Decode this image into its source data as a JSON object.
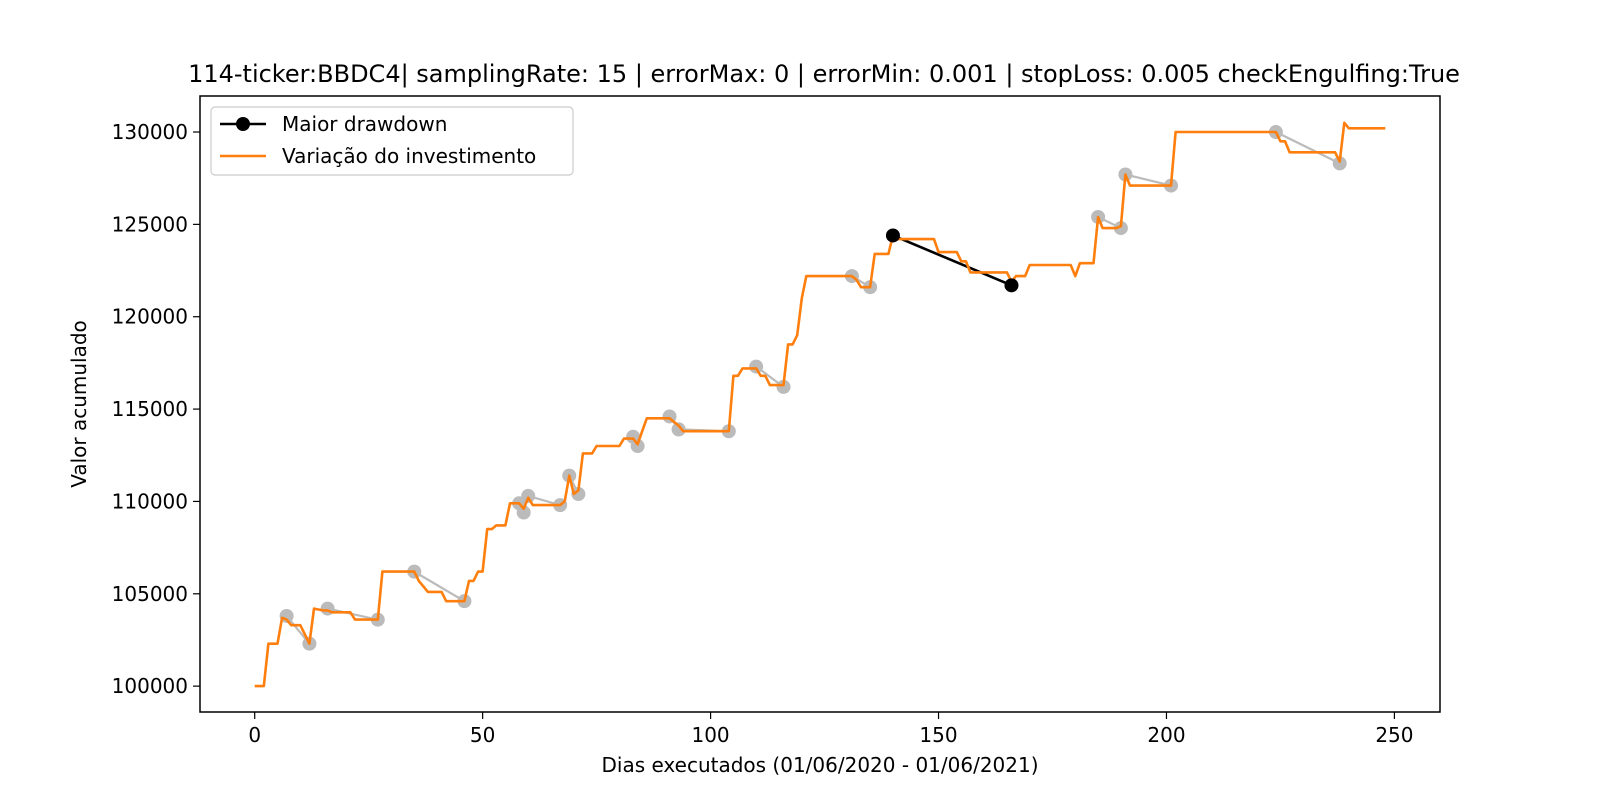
{
  "chart_data": {
    "type": "line",
    "title": "114-ticker:BBDC4| samplingRate: 15 | errorMax: 0 | errorMin: 0.001 | stopLoss: 0.005 checkEngulfing:True",
    "xlabel": "Dias executados (01/06/2020 - 01/06/2021)",
    "ylabel": "Valor acumulado",
    "xlim": [
      -12,
      260
    ],
    "ylim": [
      98600,
      131950
    ],
    "xticks": [
      0,
      50,
      100,
      150,
      200,
      250
    ],
    "yticks": [
      100000,
      105000,
      110000,
      115000,
      120000,
      125000,
      130000
    ],
    "legend": {
      "position": "upper left",
      "entries": [
        {
          "label": "Maior drawdown",
          "color": "#000000",
          "style": "line-marker"
        },
        {
          "label": "Variação do investimento",
          "color": "#ff7f0e",
          "style": "line"
        }
      ]
    },
    "series": [
      {
        "name": "Variação do investimento",
        "color": "#ff7f0e",
        "x": [
          0,
          2,
          3,
          5,
          6,
          7,
          8,
          9,
          10,
          11,
          12,
          13,
          15,
          16,
          17,
          18,
          19,
          21,
          22,
          23,
          25,
          26,
          27,
          28,
          30,
          32,
          33,
          34,
          35,
          36,
          37,
          38,
          39,
          40,
          41,
          42,
          43,
          44,
          45,
          46,
          47,
          48,
          49,
          50,
          51,
          52,
          53,
          54,
          55,
          56,
          57,
          58,
          59,
          60,
          61,
          62,
          63,
          64,
          65,
          66,
          67,
          68,
          69,
          70,
          71,
          72,
          73,
          74,
          75,
          76,
          78,
          79,
          80,
          81,
          82,
          83,
          84,
          85,
          86,
          87,
          88,
          89,
          90,
          91,
          92,
          93,
          94,
          95,
          96,
          97,
          98,
          99,
          100,
          101,
          102,
          103,
          104,
          105,
          106,
          107,
          108,
          109,
          110,
          111,
          112,
          113,
          114,
          115,
          116,
          117,
          118,
          119,
          120,
          121,
          122,
          124,
          126,
          128,
          130,
          131,
          132,
          133,
          134,
          135,
          136,
          137,
          138,
          139,
          140,
          141,
          142,
          143,
          144,
          145,
          146,
          147,
          148,
          149,
          150,
          151,
          152,
          153,
          154,
          155,
          156,
          157,
          158,
          159,
          160,
          161,
          162,
          163,
          164,
          165,
          166,
          167,
          168,
          169,
          170,
          172,
          174,
          176,
          178,
          179,
          180,
          181,
          182,
          183,
          184,
          185,
          186,
          187,
          188,
          189,
          190,
          191,
          192,
          193,
          194,
          196,
          198,
          200,
          201,
          202,
          204,
          206,
          208,
          210,
          212,
          214,
          216,
          218,
          220,
          222,
          224,
          225,
          226,
          227,
          228,
          229,
          230,
          232,
          234,
          236,
          237,
          238,
          239,
          240,
          242,
          244,
          246,
          248
        ],
        "y": [
          100000,
          100000,
          102300,
          102300,
          103700,
          103600,
          103300,
          103300,
          103300,
          102800,
          102300,
          104200,
          104100,
          104100,
          104000,
          104000,
          104000,
          104000,
          103600,
          103600,
          103600,
          103600,
          103600,
          106200,
          106200,
          106200,
          106200,
          106200,
          106200,
          105700,
          105400,
          105100,
          105100,
          105100,
          105100,
          104600,
          104600,
          104600,
          104600,
          104600,
          105700,
          105700,
          106200,
          106200,
          108500,
          108500,
          108700,
          108700,
          108700,
          109900,
          109900,
          109900,
          109600,
          110200,
          109800,
          109800,
          109800,
          109800,
          109800,
          109800,
          109800,
          110000,
          111400,
          110400,
          110600,
          112600,
          112600,
          112600,
          113000,
          113000,
          113000,
          113000,
          113000,
          113400,
          113400,
          113400,
          113100,
          113800,
          114500,
          114500,
          114500,
          114500,
          114500,
          114500,
          114300,
          114100,
          113800,
          113800,
          113800,
          113800,
          113800,
          113800,
          113800,
          113800,
          113800,
          113800,
          113800,
          116800,
          116800,
          117200,
          117200,
          117200,
          117200,
          116800,
          116800,
          116300,
          116300,
          116300,
          116300,
          118500,
          118500,
          119000,
          121000,
          122200,
          122200,
          122200,
          122200,
          122200,
          122200,
          122200,
          122000,
          121600,
          121600,
          121600,
          123400,
          123400,
          123400,
          123400,
          124400,
          124200,
          124200,
          124200,
          124200,
          124200,
          124200,
          124200,
          124200,
          124200,
          123500,
          123500,
          123500,
          123500,
          123500,
          123000,
          123000,
          122400,
          122400,
          122400,
          122400,
          122400,
          122400,
          122400,
          122400,
          122400,
          121900,
          122200,
          122200,
          122200,
          122800,
          122800,
          122800,
          122800,
          122800,
          122800,
          122200,
          122900,
          122900,
          122900,
          122900,
          125400,
          124800,
          124800,
          124800,
          124800,
          124900,
          127700,
          127100,
          127100,
          127100,
          127100,
          127100,
          127100,
          127100,
          130000,
          130000,
          130000,
          130000,
          130000,
          130000,
          130000,
          130000,
          130000,
          130000,
          130000,
          130000,
          129500,
          129500,
          128900,
          128900,
          128900,
          128900,
          128900,
          128900,
          128900,
          128900,
          128400,
          130500,
          130200,
          130200,
          130200,
          130200,
          130200
        ]
      },
      {
        "name": "",
        "color": "#bbbbbb",
        "style": "drawdowns",
        "segments": [
          {
            "x": [
              7,
              12
            ],
            "y": [
              103800,
              102300
            ]
          },
          {
            "x": [
              16,
              27
            ],
            "y": [
              104200,
              103600
            ]
          },
          {
            "x": [
              35,
              46
            ],
            "y": [
              106200,
              104600
            ]
          },
          {
            "x": [
              58,
              59
            ],
            "y": [
              109900,
              109400
            ]
          },
          {
            "x": [
              60,
              67
            ],
            "y": [
              110300,
              109800
            ]
          },
          {
            "x": [
              69,
              71
            ],
            "y": [
              111400,
              110400
            ]
          },
          {
            "x": [
              83,
              84
            ],
            "y": [
              113500,
              113000
            ]
          },
          {
            "x": [
              91,
              93
            ],
            "y": [
              114600,
              113900
            ]
          },
          {
            "x": [
              93,
              104
            ],
            "y": [
              113900,
              113800
            ]
          },
          {
            "x": [
              110,
              116
            ],
            "y": [
              117300,
              116200
            ]
          },
          {
            "x": [
              131,
              135
            ],
            "y": [
              122200,
              121600
            ]
          },
          {
            "x": [
              185,
              190
            ],
            "y": [
              125400,
              124800
            ]
          },
          {
            "x": [
              191,
              201
            ],
            "y": [
              127700,
              127100
            ]
          },
          {
            "x": [
              224,
              238
            ],
            "y": [
              130000,
              128300
            ]
          }
        ]
      },
      {
        "name": "Maior drawdown",
        "color": "#000000",
        "x": [
          140,
          166
        ],
        "y": [
          124400,
          121700
        ]
      }
    ]
  }
}
